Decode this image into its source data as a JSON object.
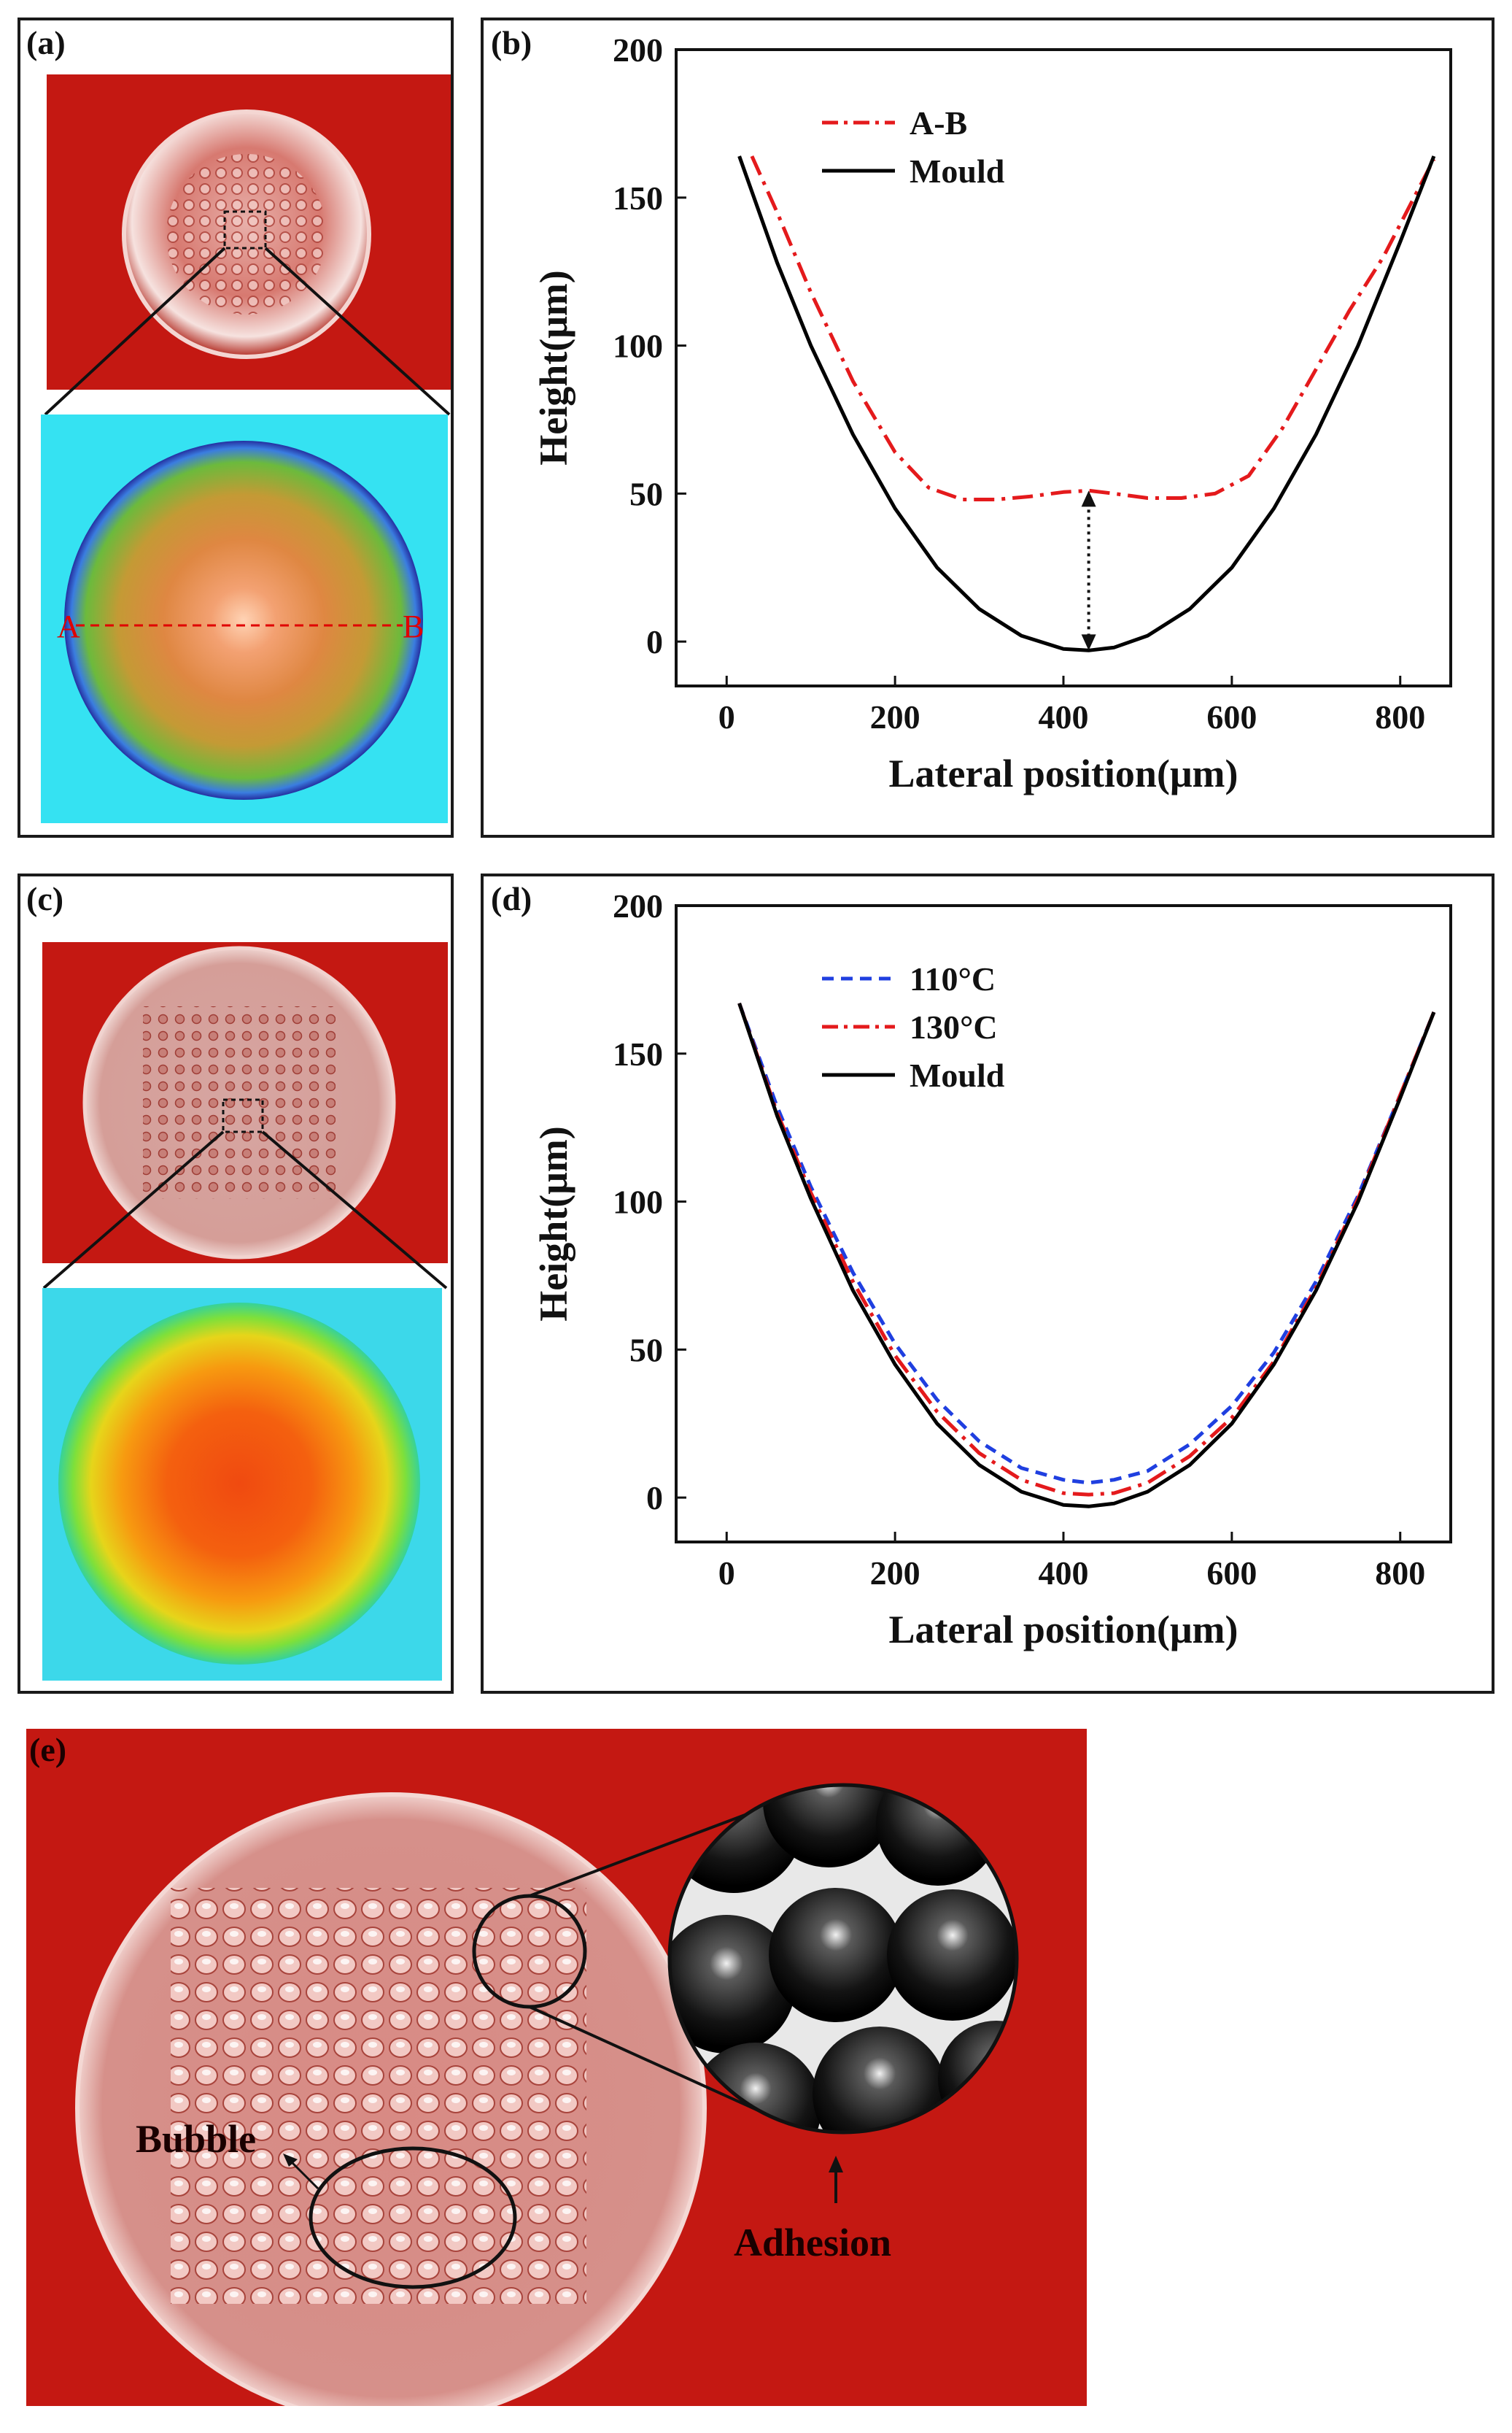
{
  "panels": {
    "a": {
      "label": "(a)",
      "point_a": "A",
      "point_b": "B"
    },
    "b": {
      "label": "(b)"
    },
    "c": {
      "label": "(c)"
    },
    "d": {
      "label": "(d)"
    },
    "e": {
      "label": "(e)",
      "bubble": "Bubble",
      "adhesion": "Adhesion"
    }
  },
  "colors": {
    "red_series": "#e41a1c",
    "blue_series": "#1f3fe0",
    "mould": "#000000",
    "substrate_red": "#c41812"
  },
  "chart_data": [
    {
      "id": "b",
      "type": "line",
      "title": "",
      "xlabel": "Lateral position(μm)",
      "ylabel": "Height(μm)",
      "xlim": [
        -60,
        860
      ],
      "ylim": [
        -15,
        200
      ],
      "xticks": [
        0,
        200,
        400,
        600,
        800
      ],
      "yticks": [
        0,
        50,
        100,
        150,
        200
      ],
      "legend_position": "top-left",
      "series": [
        {
          "name": "A-B",
          "style": "dashdot",
          "color": "#e41a1c",
          "x": [
            30,
            60,
            100,
            150,
            200,
            240,
            280,
            320,
            360,
            400,
            430,
            460,
            500,
            540,
            580,
            620,
            660,
            700,
            740,
            780,
            820,
            840
          ],
          "y": [
            164,
            145,
            118,
            88,
            64,
            52,
            48,
            48,
            49,
            50.5,
            51,
            50,
            48.5,
            48.5,
            50,
            56,
            72,
            92,
            112,
            130,
            152,
            163
          ]
        },
        {
          "name": "Mould",
          "style": "solid",
          "color": "#000000",
          "x": [
            15,
            60,
            100,
            150,
            200,
            250,
            300,
            350,
            400,
            430,
            460,
            500,
            550,
            600,
            650,
            700,
            750,
            800,
            840
          ],
          "y": [
            164,
            128,
            100,
            70,
            45,
            25,
            11,
            2,
            -2.5,
            -3,
            -2,
            2,
            11,
            25,
            45,
            70,
            100,
            135,
            164
          ]
        }
      ],
      "annotations": [
        {
          "type": "double-arrow",
          "x": 430,
          "y_from": -3,
          "y_to": 51
        }
      ]
    },
    {
      "id": "d",
      "type": "line",
      "title": "",
      "xlabel": "Lateral position(μm)",
      "ylabel": "Height(μm)",
      "xlim": [
        -60,
        860
      ],
      "ylim": [
        -15,
        200
      ],
      "xticks": [
        0,
        200,
        400,
        600,
        800
      ],
      "yticks": [
        0,
        50,
        100,
        150,
        200
      ],
      "legend_position": "top-left",
      "series": [
        {
          "name": "110°C",
          "style": "dashed",
          "color": "#1f3fe0",
          "x": [
            15,
            60,
            100,
            150,
            200,
            250,
            300,
            350,
            400,
            430,
            460,
            500,
            550,
            600,
            650,
            700,
            750,
            800,
            840
          ],
          "y": [
            167,
            132,
            105,
            76,
            52,
            33,
            19,
            10,
            6,
            5,
            6,
            9,
            18,
            31,
            49,
            73,
            102,
            136,
            164
          ]
        },
        {
          "name": "130°C",
          "style": "dashdot",
          "color": "#e41a1c",
          "x": [
            15,
            60,
            100,
            150,
            200,
            250,
            300,
            350,
            400,
            430,
            460,
            500,
            550,
            600,
            650,
            700,
            750,
            800,
            840
          ],
          "y": [
            167,
            130,
            103,
            73,
            48,
            29,
            15,
            6,
            1.5,
            1,
            1.5,
            5,
            14,
            27,
            46,
            71,
            101,
            136,
            164
          ]
        },
        {
          "name": "Mould",
          "style": "solid",
          "color": "#000000",
          "x": [
            15,
            60,
            100,
            150,
            200,
            250,
            300,
            350,
            400,
            430,
            460,
            500,
            550,
            600,
            650,
            700,
            750,
            800,
            840
          ],
          "y": [
            167,
            129,
            101,
            70,
            45,
            25,
            11,
            2,
            -2.5,
            -3,
            -2,
            2,
            11,
            25,
            45,
            70,
            100,
            135,
            164
          ]
        }
      ]
    }
  ]
}
